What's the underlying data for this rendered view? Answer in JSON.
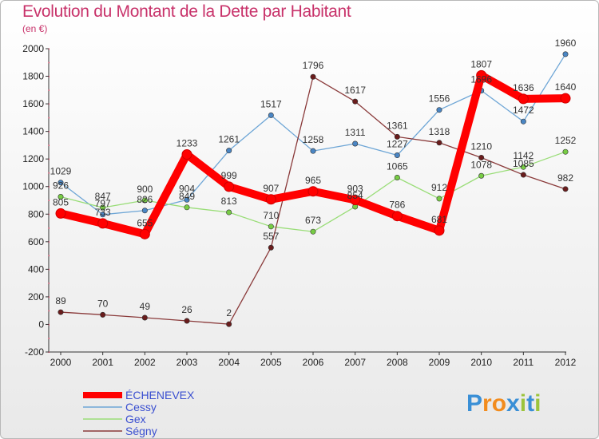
{
  "chart_data": {
    "type": "line",
    "title": "Evolution du Montant de la Dette par Habitant",
    "subtitle": "(en €)",
    "x": [
      "2000",
      "2001",
      "2002",
      "2003",
      "2004",
      "2005",
      "2006",
      "2007",
      "2008",
      "2009",
      "2010",
      "2011",
      "2012"
    ],
    "ylim": [
      -200,
      2000
    ],
    "yticks": [
      -200,
      0,
      200,
      400,
      600,
      800,
      1000,
      1200,
      1400,
      1600,
      1800,
      2000
    ],
    "grid": false,
    "legend_position": "bottom-left",
    "series": [
      {
        "name": "ÉCHENEVEX",
        "color": "#ff0000",
        "values": [
          805,
          733,
          655,
          1233,
          999,
          907,
          965,
          903,
          786,
          681,
          1807,
          1636,
          1640
        ]
      },
      {
        "name": "Cessy",
        "color": "#6ea6d6",
        "values": [
          1029,
          797,
          826,
          904,
          1261,
          1517,
          1258,
          1311,
          1227,
          1556,
          1696,
          1472,
          1960
        ]
      },
      {
        "name": "Gex",
        "color": "#99dd77",
        "values": [
          926,
          847,
          900,
          849,
          813,
          710,
          673,
          854,
          1065,
          912,
          1078,
          1142,
          1252
        ]
      },
      {
        "name": "Ségny",
        "color": "#8a3a3a",
        "values": [
          89,
          70,
          49,
          26,
          2,
          557,
          1796,
          1617,
          1361,
          1318,
          1210,
          1085,
          982
        ]
      }
    ]
  },
  "logo": {
    "letters": [
      "P",
      "r",
      "o",
      "x",
      "i",
      "t",
      "i"
    ],
    "colors": [
      "#3a8fd6",
      "#f28c1e",
      "#f28c1e",
      "#3a8fd6",
      "#9cc43c",
      "#3a8fd6",
      "#9cc43c"
    ]
  }
}
